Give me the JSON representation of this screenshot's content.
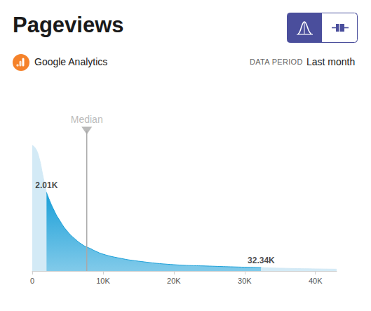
{
  "chart_data": {
    "type": "area",
    "title": "Pageviews",
    "source": "Google Analytics",
    "data_period": {
      "label": "DATA PERIOD",
      "value": "Last month"
    },
    "x": [
      0,
      500,
      1000,
      1500,
      2010,
      3000,
      4000,
      5000,
      6000,
      7000,
      7700,
      8000,
      9000,
      10000,
      12000,
      15000,
      20000,
      25000,
      30000,
      32340,
      35000,
      40000,
      43000
    ],
    "values": [
      0.895,
      0.87,
      0.8,
      0.68,
      0.56,
      0.44,
      0.35,
      0.28,
      0.23,
      0.19,
      0.17,
      0.165,
      0.14,
      0.12,
      0.095,
      0.07,
      0.045,
      0.035,
      0.027,
      0.024,
      0.02,
      0.015,
      0.013
    ],
    "range": [
      {
        "value": 2010,
        "label": "2.01K"
      },
      {
        "value": 32340,
        "label": "32.34K"
      }
    ],
    "median": {
      "value": 7700,
      "label": "Median"
    },
    "colors": [
      "#d3eaf6",
      "#1a9fd8",
      "#d3eaf6"
    ],
    "xlim": [
      0,
      43000
    ],
    "xticks": [
      0,
      {
        "value": 10000,
        "label": "10K"
      },
      {
        "value": 20000,
        "label": "20K"
      },
      {
        "value": 30000,
        "label": "30K"
      },
      {
        "value": 40000,
        "label": "40K"
      }
    ],
    "ylim": [
      0,
      1
    ],
    "tick_labels": "x",
    "grid": false
  }
}
